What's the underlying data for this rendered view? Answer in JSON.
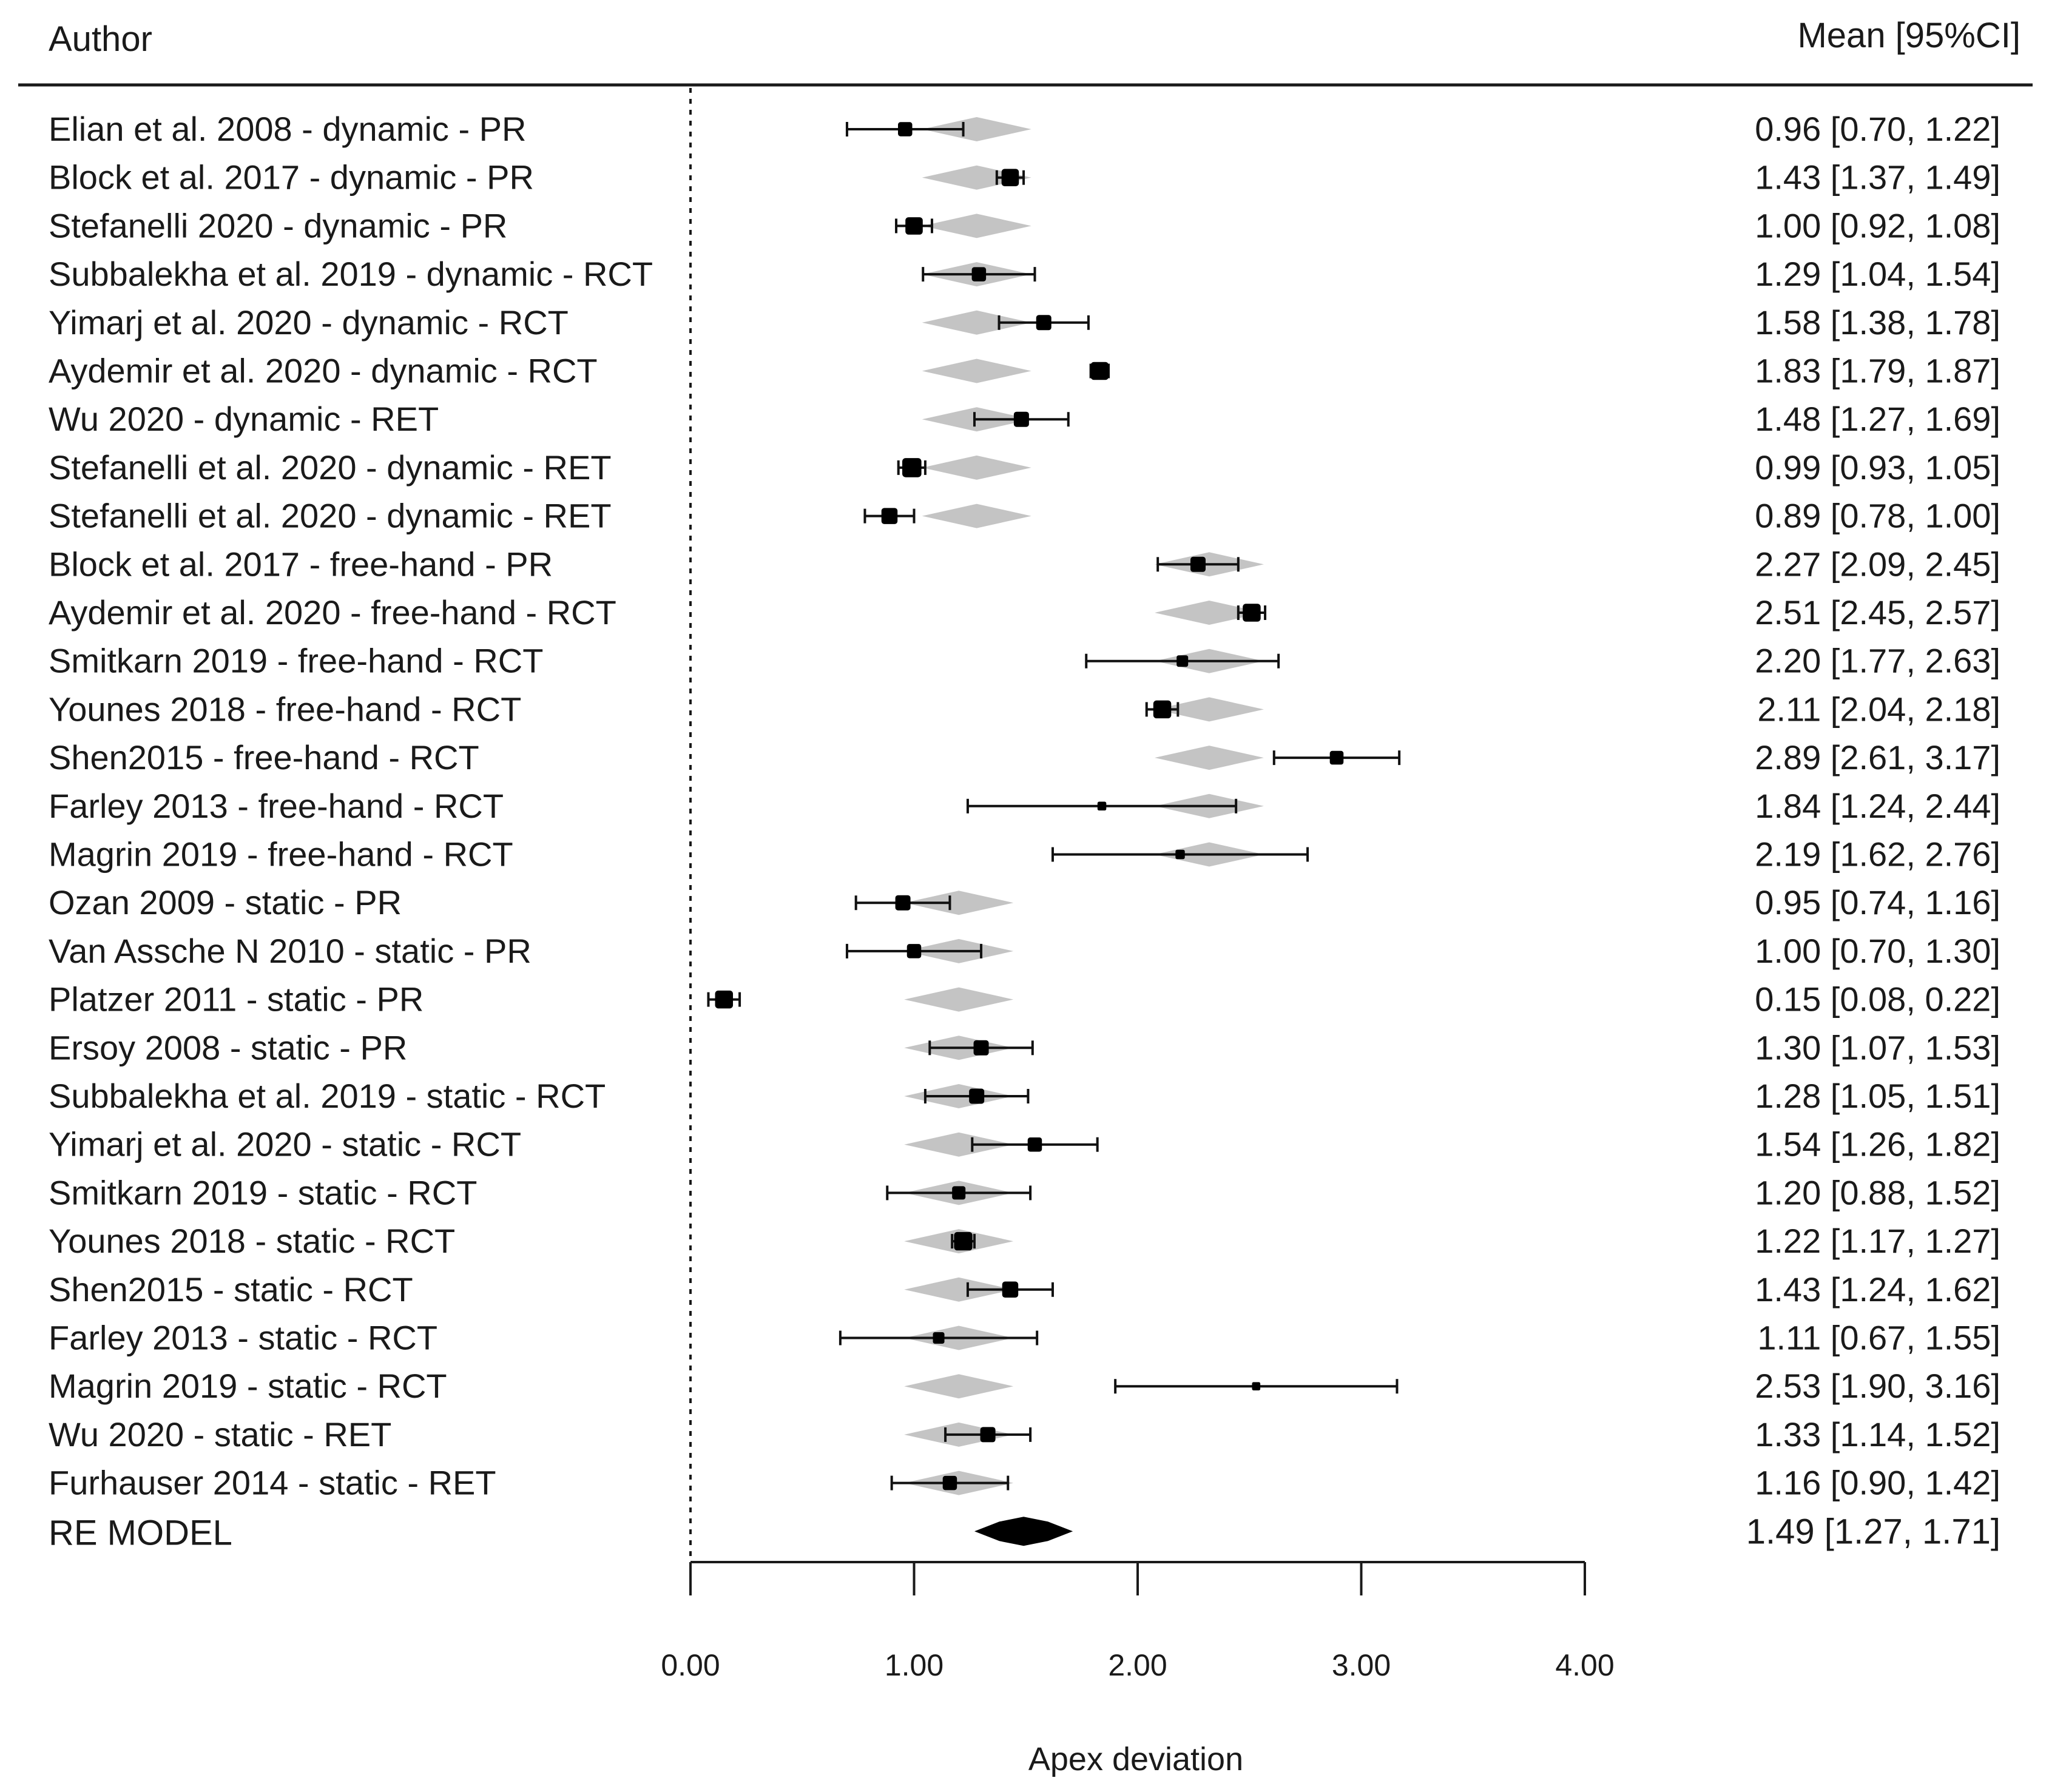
{
  "chart_data": {
    "type": "forest",
    "header": {
      "left": "Author",
      "right": "Mean [95%CI]"
    },
    "xlabel": "Apex deviation",
    "xlim": [
      0,
      4
    ],
    "xticks": [
      0,
      1,
      2,
      3,
      4
    ],
    "xtick_labels": [
      "0.00",
      "1.00",
      "2.00",
      "3.00",
      "4.00"
    ],
    "reference_line": 0,
    "studies": [
      {
        "label": "Elian et al. 2008 - dynamic - PR",
        "text": "0.96 [0.70, 1.22]",
        "mean": 0.96,
        "lo": 0.7,
        "hi": 1.22,
        "pred": 1.28,
        "weight": 0.45
      },
      {
        "label": "Block et al. 2017 - dynamic - PR",
        "text": "1.43 [1.37, 1.49]",
        "mean": 1.43,
        "lo": 1.37,
        "hi": 1.49,
        "pred": 1.28,
        "weight": 0.62
      },
      {
        "label": "Stefanelli 2020 - dynamic - PR",
        "text": "1.00 [0.92, 1.08]",
        "mean": 1.0,
        "lo": 0.92,
        "hi": 1.08,
        "pred": 1.28,
        "weight": 0.62
      },
      {
        "label": "Subbalekha et al. 2019 - dynamic - RCT",
        "text": "1.29 [1.04, 1.54]",
        "mean": 1.29,
        "lo": 1.04,
        "hi": 1.54,
        "pred": 1.28,
        "weight": 0.45
      },
      {
        "label": "Yimarj et al. 2020  - dynamic - RCT",
        "text": "1.58 [1.38, 1.78]",
        "mean": 1.58,
        "lo": 1.38,
        "hi": 1.78,
        "pred": 1.28,
        "weight": 0.5
      },
      {
        "label": "Aydemir et al. 2020 - dynamic - RCT",
        "text": "1.83 [1.79, 1.87]",
        "mean": 1.83,
        "lo": 1.79,
        "hi": 1.87,
        "pred": 1.28,
        "weight": 0.65
      },
      {
        "label": "Wu 2020 - dynamic - RET",
        "text": "1.48 [1.27, 1.69]",
        "mean": 1.48,
        "lo": 1.27,
        "hi": 1.69,
        "pred": 1.28,
        "weight": 0.5
      },
      {
        "label": "Stefanelli et al. 2020 - dynamic - RET",
        "text": "0.99 [0.93, 1.05]",
        "mean": 0.99,
        "lo": 0.93,
        "hi": 1.05,
        "pred": 1.28,
        "weight": 0.72
      },
      {
        "label": "Stefanelli et al. 2020 - dynamic - RET",
        "text": "0.89 [0.78, 1.00]",
        "mean": 0.89,
        "lo": 0.78,
        "hi": 1.0,
        "pred": 1.28,
        "weight": 0.55
      },
      {
        "label": "Block et al. 2017 - free-hand - PR",
        "text": "2.27 [2.09, 2.45]",
        "mean": 2.27,
        "lo": 2.09,
        "hi": 2.45,
        "pred": 2.32,
        "weight": 0.5
      },
      {
        "label": "Aydemir et al. 2020 - free-hand - RCT",
        "text": "2.51 [2.45, 2.57]",
        "mean": 2.51,
        "lo": 2.45,
        "hi": 2.57,
        "pred": 2.32,
        "weight": 0.65
      },
      {
        "label": "Smitkarn 2019 - free-hand - RCT",
        "text": "2.20 [1.77, 2.63]",
        "mean": 2.2,
        "lo": 1.77,
        "hi": 2.63,
        "pred": 2.32,
        "weight": 0.3
      },
      {
        "label": "Younes 2018 - free-hand - RCT",
        "text": "2.11 [2.04, 2.18]",
        "mean": 2.11,
        "lo": 2.04,
        "hi": 2.18,
        "pred": 2.32,
        "weight": 0.65
      },
      {
        "label": "Shen2015 - free-hand - RCT",
        "text": "2.89 [2.61, 3.17]",
        "mean": 2.89,
        "lo": 2.61,
        "hi": 3.17,
        "pred": 2.32,
        "weight": 0.42
      },
      {
        "label": "Farley 2013 - free-hand - RCT",
        "text": "1.84 [1.24, 2.44]",
        "mean": 1.84,
        "lo": 1.24,
        "hi": 2.44,
        "pred": 2.32,
        "weight": 0.15
      },
      {
        "label": "Magrin 2019 - free-hand - RCT",
        "text": "2.19 [1.62, 2.76]",
        "mean": 2.19,
        "lo": 1.62,
        "hi": 2.76,
        "pred": 2.32,
        "weight": 0.18
      },
      {
        "label": "Ozan 2009  - static - PR",
        "text": "0.95 [0.74, 1.16]",
        "mean": 0.95,
        "lo": 0.74,
        "hi": 1.16,
        "pred": 1.2,
        "weight": 0.5
      },
      {
        "label": "Van Assche N 2010 - static - PR",
        "text": "1.00 [0.70, 1.30]",
        "mean": 1.0,
        "lo": 0.7,
        "hi": 1.3,
        "pred": 1.2,
        "weight": 0.45
      },
      {
        "label": "Platzer 2011 - static - PR",
        "text": "0.15 [0.08, 0.22]",
        "mean": 0.15,
        "lo": 0.08,
        "hi": 0.22,
        "pred": 1.2,
        "weight": 0.65
      },
      {
        "label": "Ersoy 2008 - static - PR",
        "text": "1.30 [1.07, 1.53]",
        "mean": 1.3,
        "lo": 1.07,
        "hi": 1.53,
        "pred": 1.2,
        "weight": 0.5
      },
      {
        "label": "Subbalekha et al. 2019 - static - RCT",
        "text": "1.28 [1.05, 1.51]",
        "mean": 1.28,
        "lo": 1.05,
        "hi": 1.51,
        "pred": 1.2,
        "weight": 0.5
      },
      {
        "label": "Yimarj et al. 2020  - static - RCT",
        "text": "1.54 [1.26, 1.82]",
        "mean": 1.54,
        "lo": 1.26,
        "hi": 1.82,
        "pred": 1.2,
        "weight": 0.45
      },
      {
        "label": "Smitkarn 2019 - static - RCT",
        "text": "1.20 [0.88, 1.52]",
        "mean": 1.2,
        "lo": 0.88,
        "hi": 1.52,
        "pred": 1.2,
        "weight": 0.4
      },
      {
        "label": "Younes 2018 - static - RCT",
        "text": "1.22 [1.17, 1.27]",
        "mean": 1.22,
        "lo": 1.17,
        "hi": 1.27,
        "pred": 1.2,
        "weight": 0.68
      },
      {
        "label": "Shen2015 - static - RCT",
        "text": "1.43 [1.24, 1.62]",
        "mean": 1.43,
        "lo": 1.24,
        "hi": 1.62,
        "pred": 1.2,
        "weight": 0.55
      },
      {
        "label": "Farley 2013 - static - RCT",
        "text": "1.11 [0.67, 1.55]",
        "mean": 1.11,
        "lo": 0.67,
        "hi": 1.55,
        "pred": 1.2,
        "weight": 0.3
      },
      {
        "label": "Magrin 2019 - static - RCT",
        "text": "2.53 [1.90, 3.16]",
        "mean": 2.53,
        "lo": 1.9,
        "hi": 3.16,
        "pred": 1.2,
        "weight": 0.12
      },
      {
        "label": "Wu 2020 - static - RET",
        "text": "1.33 [1.14, 1.52]",
        "mean": 1.33,
        "lo": 1.14,
        "hi": 1.52,
        "pred": 1.2,
        "weight": 0.5
      },
      {
        "label": "Furhauser 2014 - static - RET",
        "text": "1.16 [0.90, 1.42]",
        "mean": 1.16,
        "lo": 0.9,
        "hi": 1.42,
        "pred": 1.2,
        "weight": 0.45
      }
    ],
    "summary": {
      "label": "RE MODEL",
      "text": "1.49 [1.27, 1.71]",
      "mean": 1.49,
      "lo": 1.27,
      "hi": 1.71
    }
  }
}
